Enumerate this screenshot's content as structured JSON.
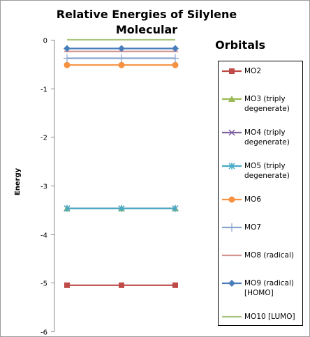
{
  "chart_data": {
    "type": "line",
    "title_line1": "Relative Energies of Silylene Molecular",
    "title_line2": "Orbitals",
    "ylabel": "Energy",
    "xlabel": "",
    "ylim": [
      -6,
      0
    ],
    "y_ticks": [
      "0",
      "-1",
      "-2",
      "-3",
      "-4",
      "-5",
      "-6"
    ],
    "y_tick_values": [
      0,
      -1,
      -2,
      -3,
      -4,
      -5,
      -6
    ],
    "x_points": 3,
    "grid": false,
    "legend_placement": "right",
    "series": [
      {
        "name": "MO2",
        "values": [
          -5.05,
          -5.05,
          -5.05
        ],
        "color": "#be4b48",
        "marker": "square"
      },
      {
        "name": "MO3 (triply degenerate)",
        "values": [
          -3.47,
          -3.47,
          -3.47
        ],
        "color": "#98b954",
        "marker": "triangle"
      },
      {
        "name": "MO4 (triply degenerate)",
        "values": [
          -3.47,
          -3.47,
          -3.47
        ],
        "color": "#7d60a0",
        "marker": "x"
      },
      {
        "name": "MO5 (triply degenerate)",
        "values": [
          -3.47,
          -3.47,
          -3.47
        ],
        "color": "#46aac5",
        "marker": "star"
      },
      {
        "name": "MO6",
        "values": [
          -0.52,
          -0.52,
          -0.52
        ],
        "color": "#f69240",
        "marker": "circle"
      },
      {
        "name": "MO7",
        "values": [
          -0.38,
          -0.38,
          -0.38
        ],
        "color": "#8aa3cf",
        "marker": "plus"
      },
      {
        "name": "MO8 (radical)",
        "values": [
          -0.24,
          -0.24,
          -0.24
        ],
        "color": "#d19392",
        "marker": "dash"
      },
      {
        "name": "MO9 (radical) [HOMO]",
        "values": [
          -0.18,
          -0.18,
          -0.18
        ],
        "color": "#4a7ebb",
        "marker": "diamond"
      },
      {
        "name": "MO10 [LUMO]",
        "values": [
          0,
          0,
          0
        ],
        "color": "#a9c47f",
        "marker": "none"
      }
    ]
  }
}
